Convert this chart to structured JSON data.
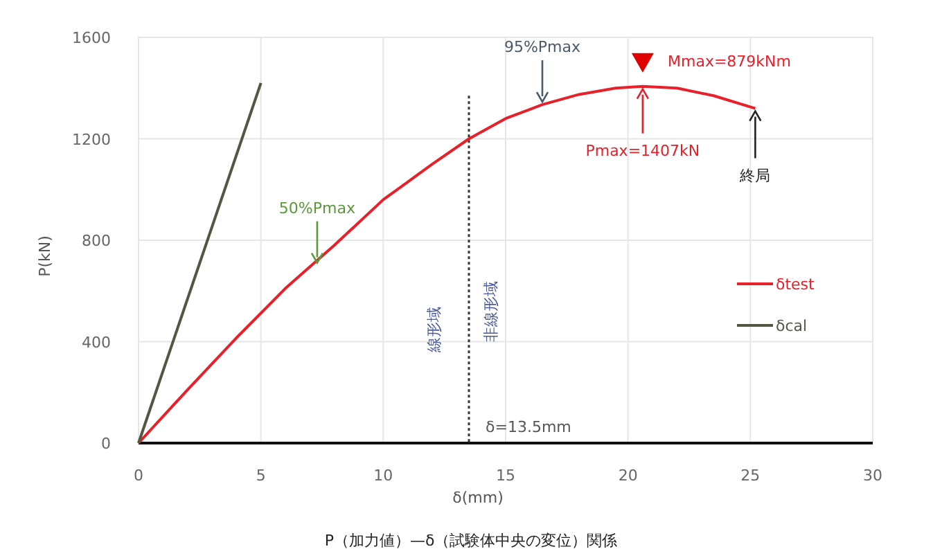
{
  "chart_data": {
    "type": "line",
    "xlabel": "δ(mm)",
    "ylabel": "P(kN)",
    "xlim": [
      0,
      30
    ],
    "xticks": [
      0,
      5,
      10,
      15,
      20,
      25,
      30
    ],
    "ylim": [
      0,
      1600
    ],
    "yticks": [
      0,
      400,
      800,
      1200,
      1600
    ],
    "grid": true,
    "legend": "right",
    "line_style": "solid",
    "marker": "none",
    "series": [
      {
        "name": "δtest",
        "color": "#e8202a",
        "x": [
          0,
          2,
          4,
          6,
          8,
          10,
          11,
          12,
          13.5,
          15,
          16.5,
          18,
          19.5,
          20.6,
          22,
          23.5,
          25.2
        ],
        "values": [
          0,
          210,
          415,
          610,
          780,
          960,
          1030,
          1100,
          1200,
          1280,
          1335,
          1375,
          1400,
          1407,
          1400,
          1370,
          1320
        ]
      },
      {
        "name": "δcal",
        "color": "#555544",
        "x": [
          0,
          5
        ],
        "values": [
          0,
          1420
        ]
      }
    ],
    "ref_lines": [
      {
        "axis": "x",
        "value": 13.5,
        "label": "δ=13.5mm",
        "color": "#333333",
        "line_style": "dotted"
      }
    ],
    "annotations": [
      {
        "text": "50%Pmax",
        "x": 7.3,
        "y": 700
      },
      {
        "text": "95%Pmax",
        "x": 16.5,
        "y": 1335
      },
      {
        "text": "Pmax=1407kN",
        "x": 20.6,
        "y": 1407
      },
      {
        "text": "終局",
        "x": 25.2,
        "y": 1320
      },
      "Mmax=879kNm",
      "線形域",
      "非線形域",
      "P（加力値）—δ（試験体中央の変位）関係"
    ]
  }
}
